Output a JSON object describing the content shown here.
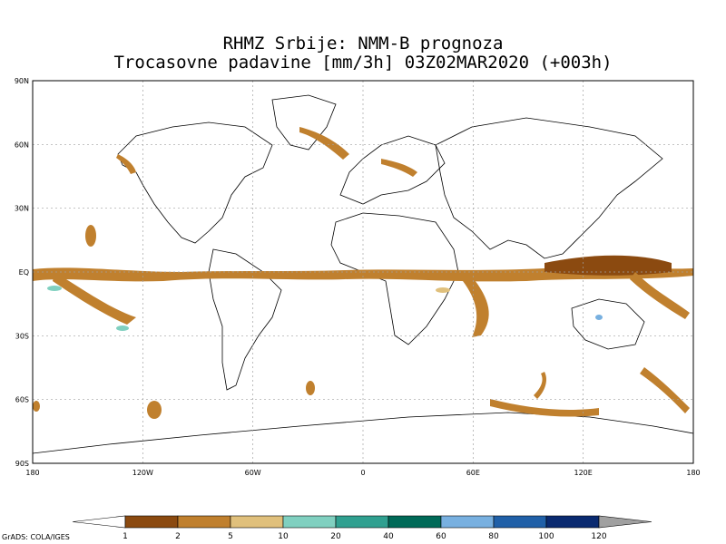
{
  "title_line1": "RHMZ Srbije: NMM-B prognoza",
  "title_line2": "Trocasovne padavine [mm/3h] 03Z02MAR2020 (+003h)",
  "lat_labels": [
    "90N",
    "60N",
    "30N",
    "EQ",
    "30S",
    "60S",
    "90S"
  ],
  "lon_labels": [
    "180",
    "120W",
    "60W",
    "0",
    "60E",
    "120E",
    "180"
  ],
  "colorbar": {
    "colors": [
      "#8b4a10",
      "#c0802e",
      "#e0c07c",
      "#80d0c0",
      "#30a090",
      "#006a58",
      "#78b0e0",
      "#2060a8",
      "#0a2a70"
    ],
    "labels": [
      "1",
      "2",
      "5",
      "10",
      "20",
      "40",
      "60",
      "80",
      "100",
      "120"
    ],
    "under_color": "#ffffff",
    "over_color": "#a0a0a0"
  },
  "footer": "GrADS: COLA/IGES"
}
